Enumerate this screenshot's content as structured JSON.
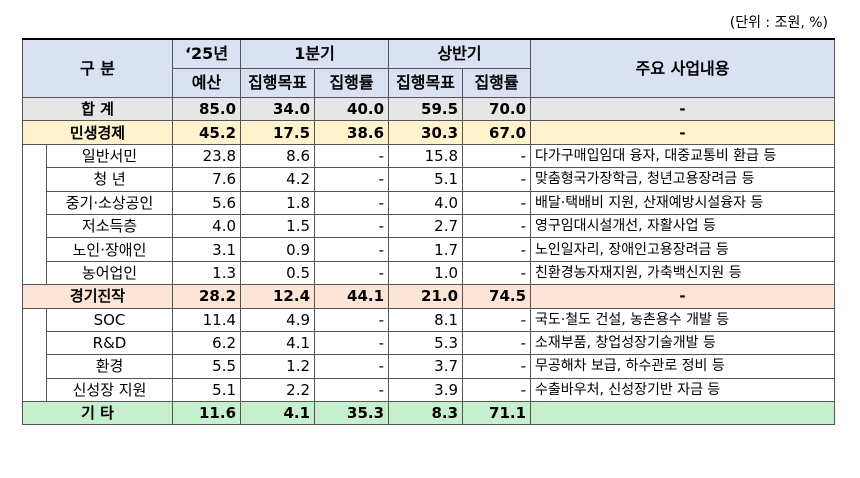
{
  "unit_note": "(단위 : 조원, %)",
  "header": {
    "category": "구  분",
    "budget_year": "‘25년",
    "budget": "예산",
    "q1": "1분기",
    "h1": "상반기",
    "target": "집행목표",
    "rate": "집행률",
    "description": "주요 사업내용"
  },
  "rows": [
    {
      "label": "합   계",
      "budget": "85.0",
      "q1_target": "34.0",
      "q1_rate": "40.0",
      "h1_target": "59.5",
      "h1_rate": "70.0",
      "desc": "-"
    },
    {
      "label": "민생경제",
      "budget": "45.2",
      "q1_target": "17.5",
      "q1_rate": "38.6",
      "h1_target": "30.3",
      "h1_rate": "67.0",
      "desc": "-"
    },
    {
      "label": "일반서민",
      "budget": "23.8",
      "q1_target": "8.6",
      "q1_rate": "-",
      "h1_target": "15.8",
      "h1_rate": "-",
      "desc": "다가구매입임대 융자, 대중교통비 환급 등"
    },
    {
      "label": "청   년",
      "budget": "7.6",
      "q1_target": "4.2",
      "q1_rate": "-",
      "h1_target": "5.1",
      "h1_rate": "-",
      "desc": "맞춤형국가장학금, 청년고용장려금 등"
    },
    {
      "label": "중기·소상공인",
      "budget": "5.6",
      "q1_target": "1.8",
      "q1_rate": "-",
      "h1_target": "4.0",
      "h1_rate": "-",
      "desc": "배달·택배비 지원, 산재예방시설융자 등"
    },
    {
      "label": "저소득층",
      "budget": "4.0",
      "q1_target": "1.5",
      "q1_rate": "-",
      "h1_target": "2.7",
      "h1_rate": "-",
      "desc": "영구임대시설개선, 자활사업 등"
    },
    {
      "label": "노인·장애인",
      "budget": "3.1",
      "q1_target": "0.9",
      "q1_rate": "-",
      "h1_target": "1.7",
      "h1_rate": "-",
      "desc": "노인일자리, 장애인고용장려금 등"
    },
    {
      "label": "농어업인",
      "budget": "1.3",
      "q1_target": "0.5",
      "q1_rate": "-",
      "h1_target": "1.0",
      "h1_rate": "-",
      "desc": "친환경농자재지원, 가축백신지원 등"
    },
    {
      "label": "경기진작",
      "budget": "28.2",
      "q1_target": "12.4",
      "q1_rate": "44.1",
      "h1_target": "21.0",
      "h1_rate": "74.5",
      "desc": "-"
    },
    {
      "label": "SOC",
      "budget": "11.4",
      "q1_target": "4.9",
      "q1_rate": "-",
      "h1_target": "8.1",
      "h1_rate": "-",
      "desc": "국도·철도 건설, 농촌용수 개발 등"
    },
    {
      "label": "R&D",
      "budget": "6.2",
      "q1_target": "4.1",
      "q1_rate": "-",
      "h1_target": "5.3",
      "h1_rate": "-",
      "desc": "소재부품, 창업성장기술개발 등"
    },
    {
      "label": "환경",
      "budget": "5.5",
      "q1_target": "1.2",
      "q1_rate": "-",
      "h1_target": "3.7",
      "h1_rate": "-",
      "desc": "무공해차 보급, 하수관로 정비 등"
    },
    {
      "label": "신성장 지원",
      "budget": "5.1",
      "q1_target": "2.2",
      "q1_rate": "-",
      "h1_target": "3.9",
      "h1_rate": "-",
      "desc": "수출바우처, 신성장기반 자금 등"
    },
    {
      "label": "기   타",
      "budget": "11.6",
      "q1_target": "4.1",
      "q1_rate": "35.3",
      "h1_target": "8.3",
      "h1_rate": "71.1",
      "desc": ""
    }
  ]
}
